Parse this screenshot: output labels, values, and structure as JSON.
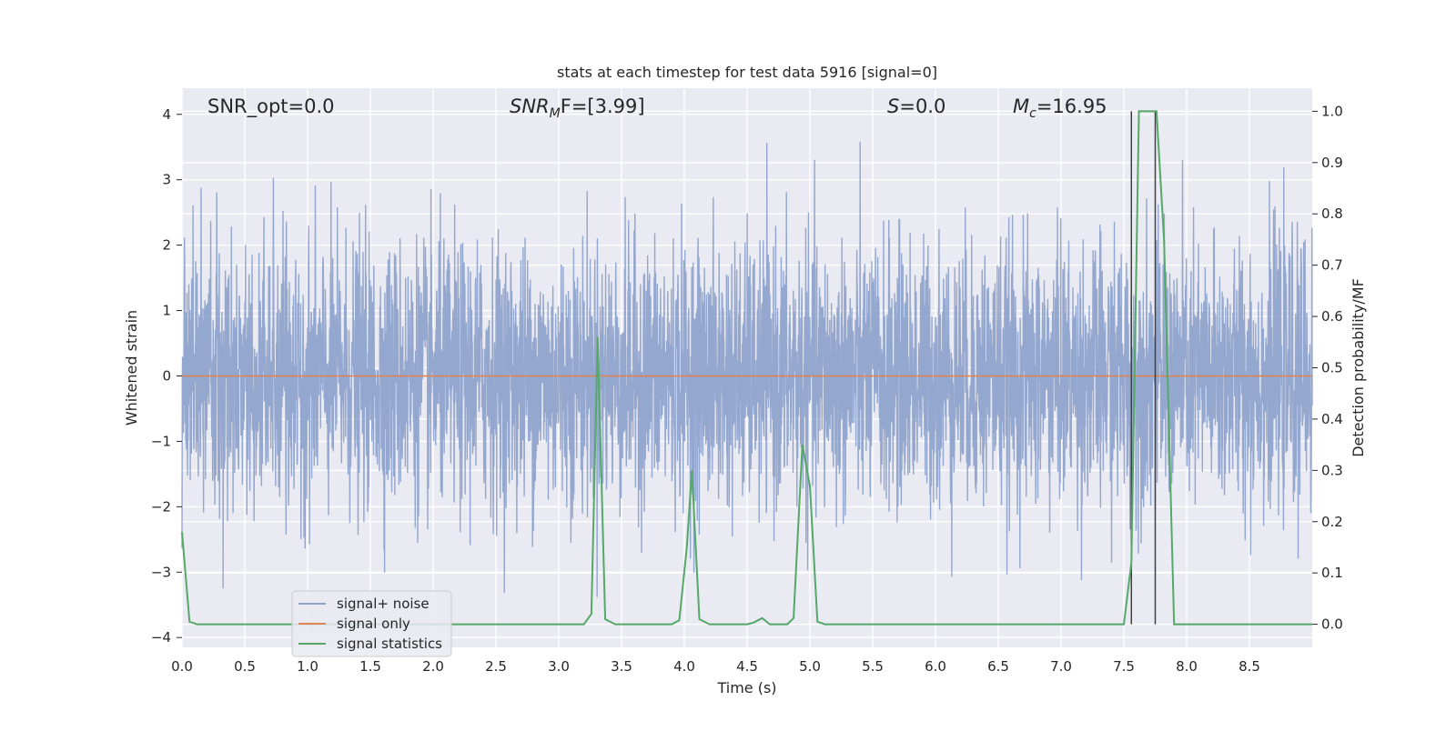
{
  "chart_data": {
    "type": "line",
    "title": "stats at each timestep for test data 5916 [signal=0]",
    "xlabel": "Time (s)",
    "ylabel_left": "Whitened strain",
    "ylabel_right": "Detection probability/MF",
    "xlim": [
      0.0,
      9.0
    ],
    "ylim_left": [
      -4.15,
      4.4
    ],
    "ylim_right": [
      -0.045,
      1.045
    ],
    "grid": true,
    "background": "#eaeaf2",
    "x_ticks": [
      "0.0",
      "0.5",
      "1.0",
      "1.5",
      "2.0",
      "2.5",
      "3.0",
      "3.5",
      "4.0",
      "4.5",
      "5.0",
      "5.5",
      "6.0",
      "6.5",
      "7.0",
      "7.5",
      "8.0",
      "8.5"
    ],
    "y_left_ticks": [
      "4",
      "3",
      "2",
      "1",
      "0",
      "−1",
      "−2",
      "−3",
      "−4"
    ],
    "y_right_ticks": [
      "1.0",
      "0.9",
      "0.8",
      "0.7",
      "0.6",
      "0.5",
      "0.4",
      "0.3",
      "0.2",
      "0.1",
      "0.0"
    ],
    "annotations": {
      "snr_opt": "SNR_opt=0.0",
      "snr_mf_main": "SNR",
      "snr_mf_sub": "M",
      "snr_mf_rest": "F=[3.99]",
      "s_main": "S",
      "s_rest": "=0.0",
      "mc_main": "M",
      "mc_sub": "c",
      "mc_rest": "=16.95"
    },
    "legend": {
      "position": "lower-left",
      "entries": [
        "signal+ noise",
        "signal only",
        "signal statistics"
      ]
    },
    "series": [
      {
        "name": "signal+ noise",
        "axis": "left",
        "color": "#8fa3cc",
        "description_stats": {
          "mean": 0.0,
          "std": 1.0,
          "samples": 4096
        }
      },
      {
        "name": "signal only",
        "axis": "left",
        "color": "#dd8452",
        "x": [
          0.0,
          9.0
        ],
        "y": [
          0.0,
          0.0
        ]
      },
      {
        "name": "signal statistics",
        "axis": "right",
        "color": "#55a868",
        "x": [
          0.0,
          0.06,
          0.12,
          0.5,
          1.0,
          1.5,
          2.0,
          2.5,
          3.0,
          3.2,
          3.26,
          3.31,
          3.37,
          3.45,
          3.6,
          3.8,
          3.9,
          3.96,
          4.02,
          4.06,
          4.12,
          4.2,
          4.4,
          4.5,
          4.55,
          4.62,
          4.68,
          4.75,
          4.82,
          4.87,
          4.94,
          5.0,
          5.06,
          5.12,
          5.5,
          6.0,
          6.5,
          7.0,
          7.5,
          7.56,
          7.62,
          7.68,
          7.76,
          7.82,
          7.9,
          8.0,
          8.5,
          9.0
        ],
        "y": [
          0.18,
          0.005,
          0.0,
          0.0,
          0.0,
          0.0,
          0.0,
          0.0,
          0.0,
          0.0,
          0.02,
          0.56,
          0.01,
          0.0,
          0.0,
          0.0,
          0.0,
          0.008,
          0.15,
          0.3,
          0.01,
          0.0,
          0.0,
          0.0,
          0.003,
          0.012,
          0.0,
          0.0,
          0.0,
          0.012,
          0.35,
          0.27,
          0.005,
          0.0,
          0.0,
          0.0,
          0.0,
          0.0,
          0.0,
          0.12,
          1.0,
          1.0,
          1.0,
          0.75,
          0.0,
          0.0,
          0.0,
          0.0
        ]
      }
    ],
    "vlines": {
      "color": "#404040",
      "x": [
        7.56,
        7.75
      ],
      "ymin": 0.0,
      "ymax": 1.0
    }
  }
}
